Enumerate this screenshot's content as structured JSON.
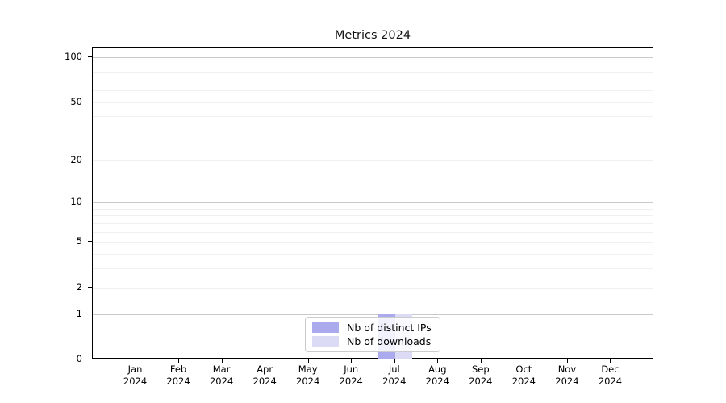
{
  "chart_data": {
    "type": "bar",
    "title": "Metrics 2024",
    "categories": [
      "Jan 2024",
      "Feb 2024",
      "Mar 2024",
      "Apr 2024",
      "May 2024",
      "Jun 2024",
      "Jul 2024",
      "Aug 2024",
      "Sep 2024",
      "Oct 2024",
      "Nov 2024",
      "Dec 2024"
    ],
    "x_tick_line1": [
      "Jan",
      "Feb",
      "Mar",
      "Apr",
      "May",
      "Jun",
      "Jul",
      "Aug",
      "Sep",
      "Oct",
      "Nov",
      "Dec"
    ],
    "x_tick_line2": "2024",
    "series": [
      {
        "name": "Nb of distinct IPs",
        "color": "#aaaaec",
        "values": [
          0,
          0,
          0,
          0,
          0,
          0,
          1,
          0,
          0,
          0,
          0,
          0
        ]
      },
      {
        "name": "Nb of downloads",
        "color": "#dbdbf6",
        "values": [
          0,
          0,
          0,
          0,
          0,
          0,
          1,
          0,
          0,
          0,
          0,
          0
        ]
      }
    ],
    "xlabel": "",
    "ylabel": "",
    "y_scale": "log1p",
    "y_ticks": [
      0,
      1,
      2,
      5,
      10,
      20,
      50,
      100
    ],
    "y_major_gridlines": [
      1,
      10,
      100
    ],
    "y_minor_gridlines": [
      2,
      3,
      4,
      5,
      6,
      7,
      8,
      9,
      20,
      30,
      40,
      50,
      60,
      70,
      80,
      90
    ],
    "ylim": [
      0,
      117
    ],
    "grid": true,
    "legend_position": "lower center",
    "axis_color": "#000000",
    "major_grid_color": "#c9c9c9",
    "minor_grid_color": "#f0f0f0",
    "background_color": "#ffffff"
  }
}
